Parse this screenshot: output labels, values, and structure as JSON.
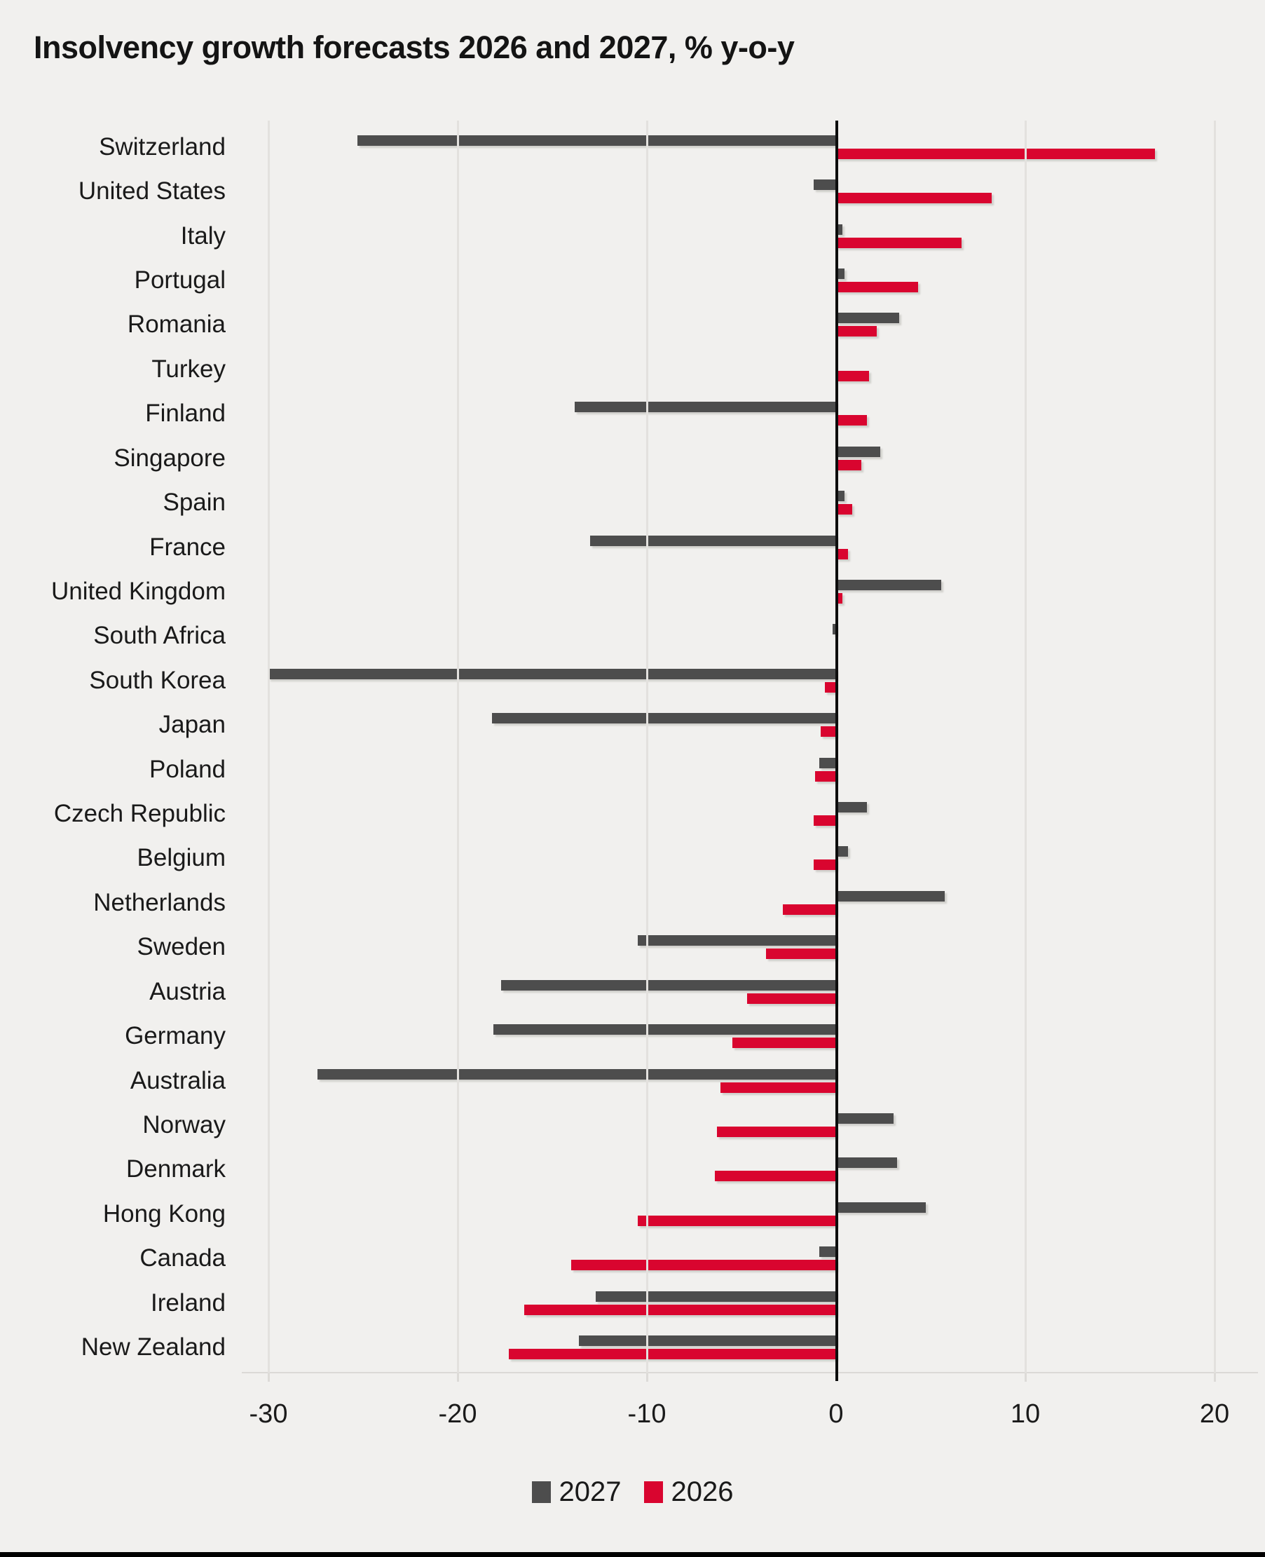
{
  "title": "Insolvency growth forecasts 2026 and 2027, % y-o-y",
  "colors": {
    "background": "#f1f0ee",
    "series_2027": "#4d4d4d",
    "series_2026": "#d9052f",
    "gridline": "#e3e1de",
    "zero_line": "#0d0d0d",
    "text": "#1a1a1a"
  },
  "legend": {
    "items": [
      {
        "label": "2027",
        "color": "#4d4d4d"
      },
      {
        "label": "2026",
        "color": "#d9052f"
      }
    ]
  },
  "chart_data": {
    "type": "bar",
    "orientation": "horizontal",
    "title": "Insolvency growth forecasts 2026 and 2027, % y-o-y",
    "xlabel": "",
    "ylabel": "",
    "xlim": [
      -31.4,
      22.3
    ],
    "xticks": [
      -30,
      -20,
      -10,
      0,
      10,
      20
    ],
    "grid": true,
    "legend_position": "bottom",
    "categories": [
      "Switzerland",
      "United States",
      "Italy",
      "Portugal",
      "Romania",
      "Turkey",
      "Finland",
      "Singapore",
      "Spain",
      "France",
      "United Kingdom",
      "South Africa",
      "South Korea",
      "Japan",
      "Poland",
      "Czech Republic",
      "Belgium",
      "Netherlands",
      "Sweden",
      "Austria",
      "Germany",
      "Australia",
      "Norway",
      "Denmark",
      "Hong Kong",
      "Canada",
      "Ireland",
      "New Zealand"
    ],
    "series": [
      {
        "name": "2027",
        "color": "#4d4d4d",
        "values": [
          -25.3,
          -1.2,
          0.3,
          0.4,
          3.3,
          0,
          -13.8,
          2.3,
          0.4,
          -13.0,
          5.5,
          -0.2,
          -30.0,
          -18.2,
          -0.9,
          1.6,
          0.6,
          5.7,
          -10.5,
          -17.7,
          -18.1,
          -27.4,
          3.0,
          3.2,
          4.7,
          -0.9,
          -12.7,
          -13.6
        ]
      },
      {
        "name": "2026",
        "color": "#d9052f",
        "values": [
          16.8,
          8.2,
          6.6,
          4.3,
          2.1,
          1.7,
          1.6,
          1.3,
          0.8,
          0.6,
          0.3,
          0,
          -0.6,
          -0.8,
          -1.1,
          -1.2,
          -1.2,
          -2.8,
          -3.7,
          -4.7,
          -5.5,
          -6.1,
          -6.3,
          -6.4,
          -10.5,
          -14.0,
          -16.5,
          -17.3
        ]
      }
    ]
  }
}
